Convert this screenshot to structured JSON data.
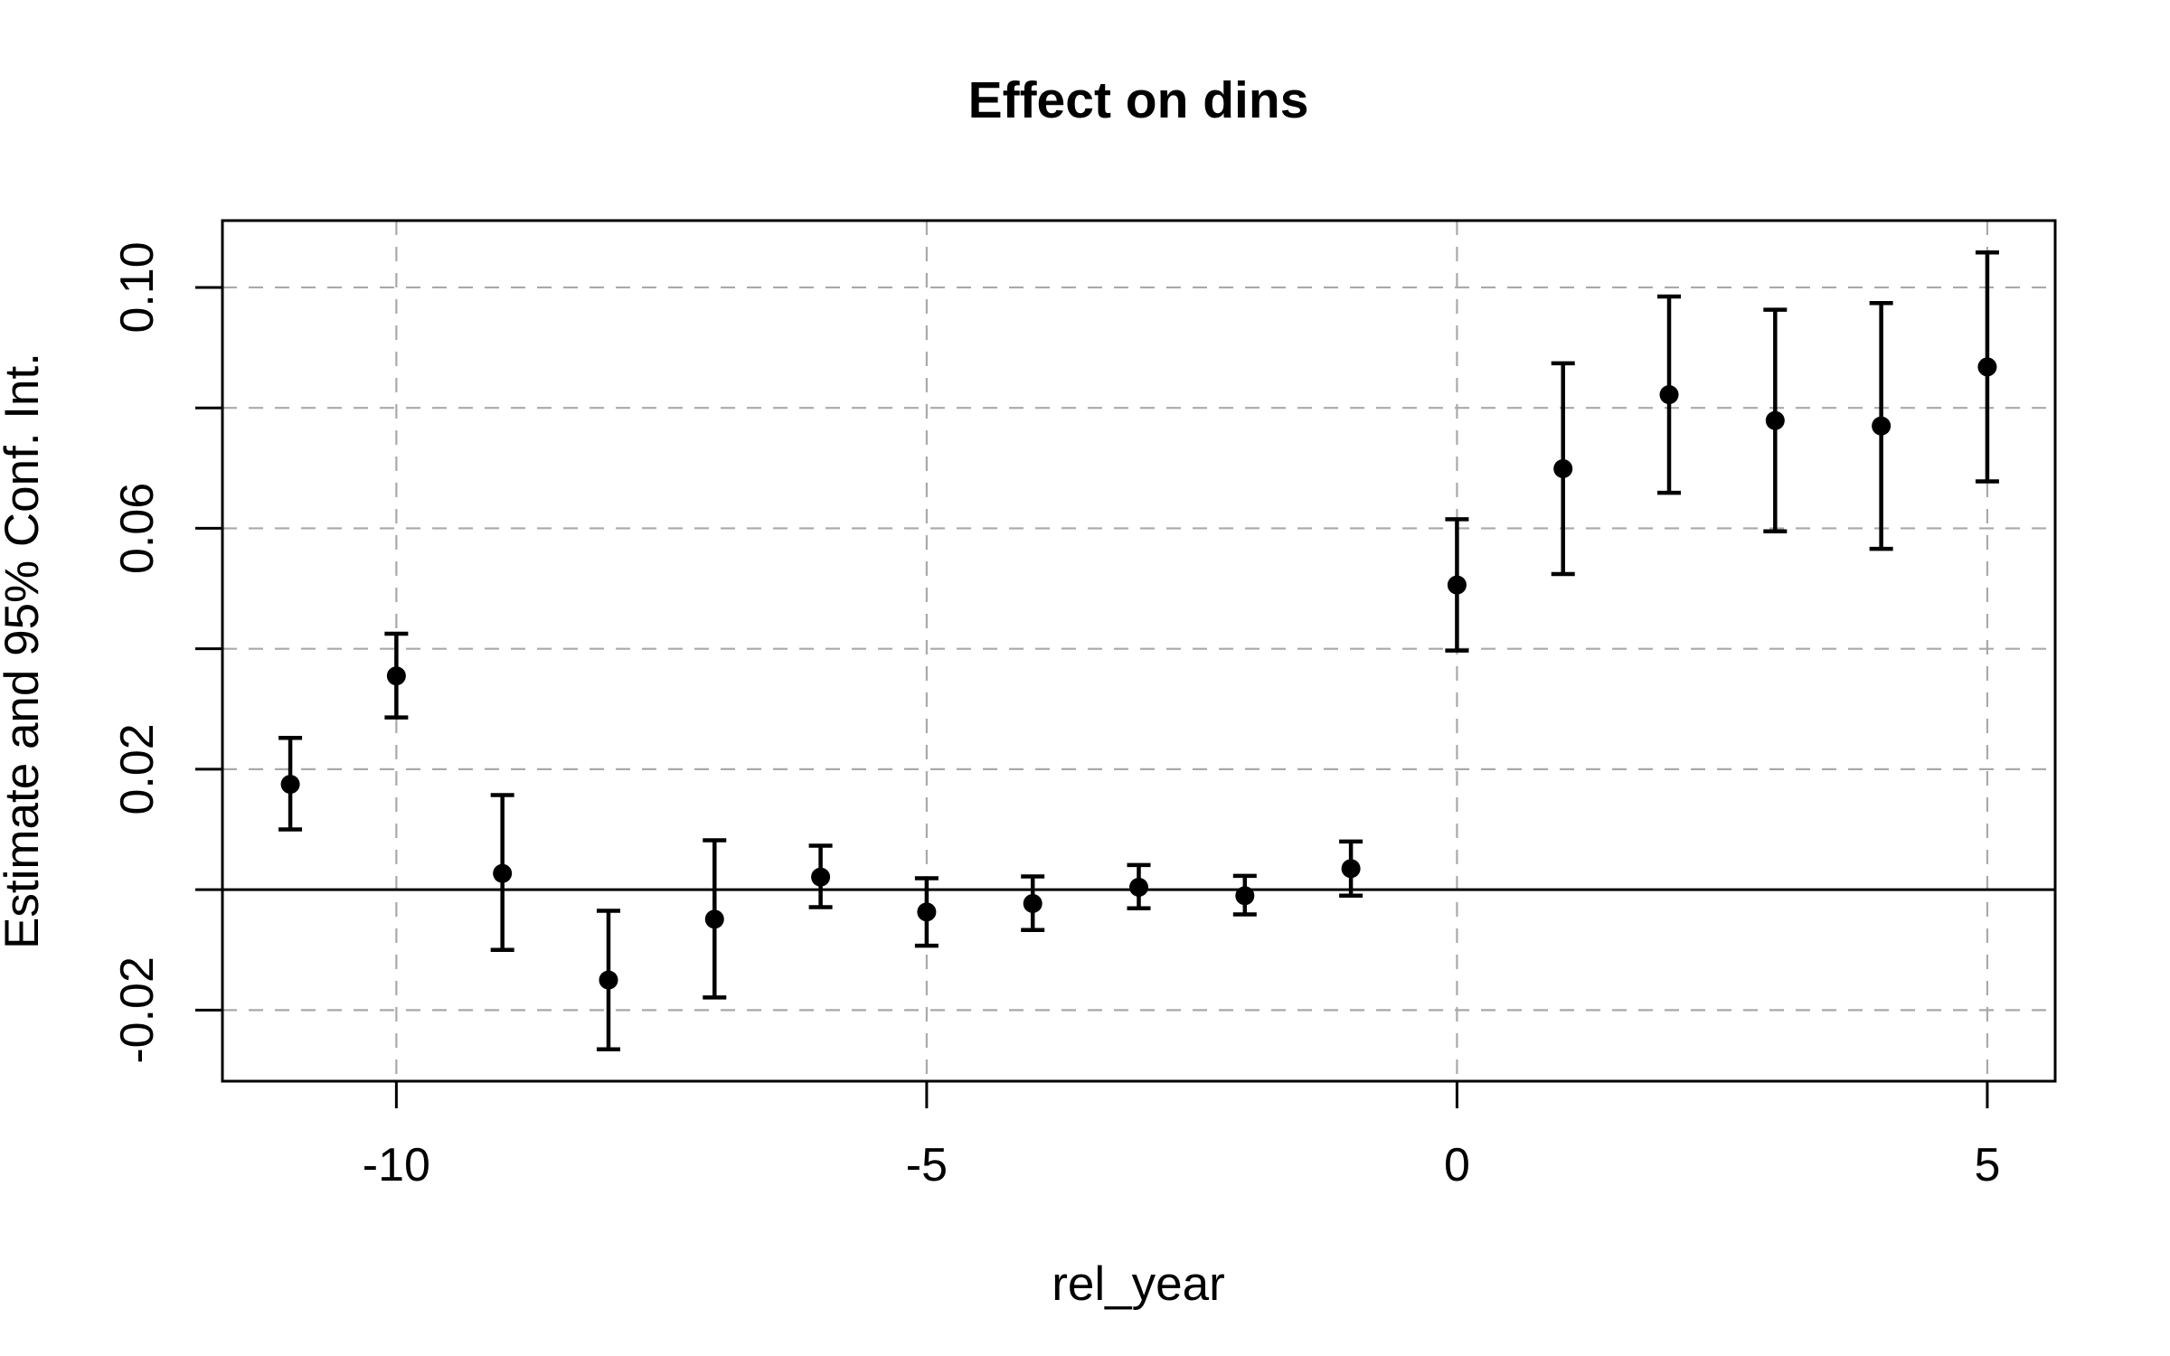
{
  "chart_data": {
    "type": "scatter",
    "variant": "event-study-errorbar",
    "title": "Effect on dins",
    "xlabel": "rel_year",
    "ylabel": "Estimate and 95% Conf. Int.",
    "x": [
      -11,
      -10,
      -9,
      -8,
      -7,
      -6,
      -5,
      -4,
      -3,
      -2,
      -1,
      0,
      1,
      2,
      3,
      4,
      5
    ],
    "series": [
      {
        "name": "estimate",
        "values": [
          0.0175,
          0.0355,
          0.0027,
          -0.015,
          -0.0049,
          0.0021,
          -0.0037,
          -0.0023,
          0.0004,
          -0.001,
          0.0035,
          0.0506,
          0.0699,
          0.0822,
          0.0779,
          0.077,
          0.0868
        ]
      },
      {
        "name": "ci_lower",
        "values": [
          0.01,
          0.0286,
          -0.01,
          -0.0265,
          -0.0179,
          -0.0029,
          -0.0093,
          -0.0067,
          -0.0031,
          -0.0041,
          -0.001,
          0.0397,
          0.0524,
          0.0659,
          0.0595,
          0.0566,
          0.0678
        ]
      },
      {
        "name": "ci_upper",
        "values": [
          0.0252,
          0.0425,
          0.0157,
          -0.0035,
          0.0082,
          0.0073,
          0.0019,
          0.0022,
          0.0041,
          0.0023,
          0.008,
          0.0615,
          0.0874,
          0.0985,
          0.0963,
          0.0974,
          0.1058
        ]
      }
    ],
    "xlim": [
      -11.64,
      5.64
    ],
    "ylim": [
      -0.0318,
      0.1111
    ],
    "x_ticks": [
      {
        "value": -10,
        "label": "-10"
      },
      {
        "value": -5,
        "label": "-5"
      },
      {
        "value": 0,
        "label": "0"
      },
      {
        "value": 5,
        "label": "5"
      }
    ],
    "y_ticks": [
      {
        "value": -0.02,
        "label": "-0.02"
      },
      {
        "value": 0.0,
        "label": ""
      },
      {
        "value": 0.02,
        "label": "0.02"
      },
      {
        "value": 0.04,
        "label": ""
      },
      {
        "value": 0.06,
        "label": "0.06"
      },
      {
        "value": 0.08,
        "label": ""
      },
      {
        "value": 0.1,
        "label": "0.10"
      }
    ],
    "grid": true,
    "grid_style": "dashed",
    "zero_line": true,
    "legend_position": "none",
    "colors": {
      "point": "#000000",
      "error_bar": "#000000",
      "axis": "#000000",
      "grid": "#a9a9a9",
      "background": "#ffffff"
    }
  }
}
